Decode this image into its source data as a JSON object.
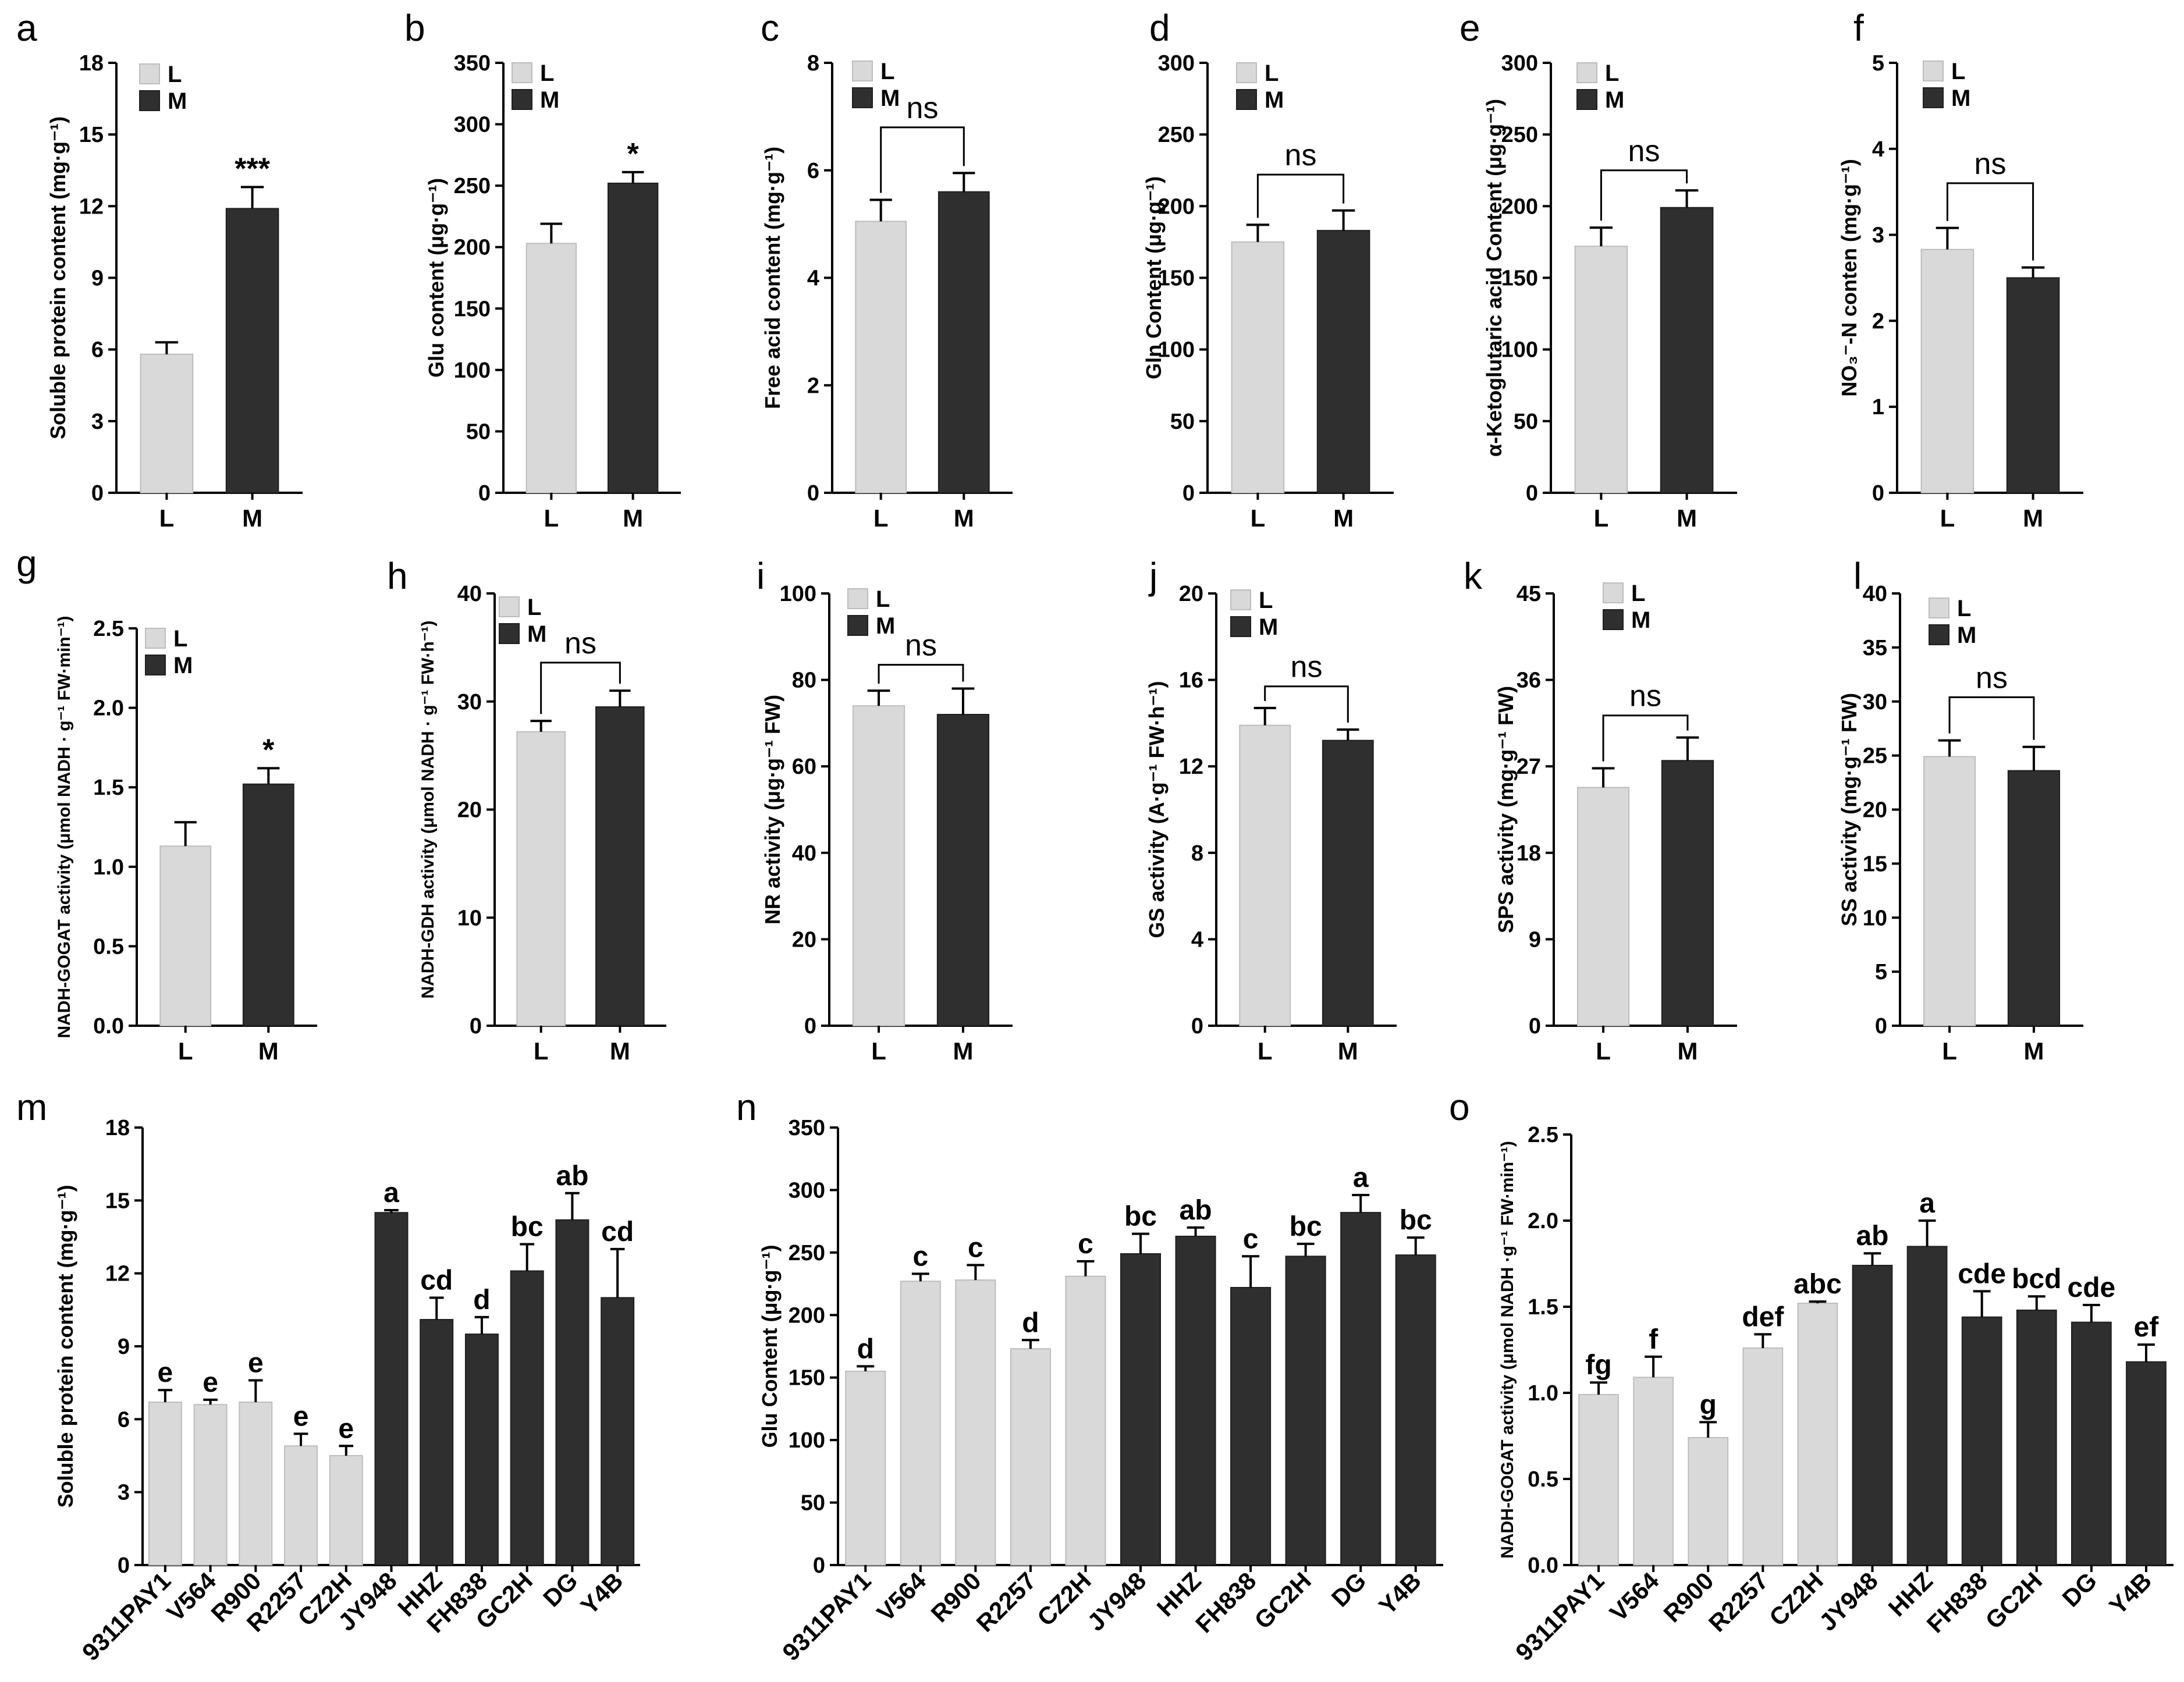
{
  "colors": {
    "low": "#d9d9d9",
    "high": "#2f2f2f",
    "axis": "#000000"
  },
  "legend": {
    "low": "L",
    "high": "M"
  },
  "chart_data": [
    {
      "id": "a",
      "panel_label": "a",
      "type": "bar",
      "categories": [
        "L",
        "M"
      ],
      "values": [
        5.8,
        11.9
      ],
      "errors": [
        0.5,
        0.9
      ],
      "ylim": [
        0,
        18
      ],
      "yticks": [
        "0",
        "3",
        "6",
        "9",
        "12",
        "15",
        "18"
      ],
      "ylabel": "Soluble protein content (mg·g⁻¹)",
      "sig": {
        "text": "***",
        "type": "star",
        "bar": 1
      }
    },
    {
      "id": "b",
      "panel_label": "b",
      "type": "bar",
      "categories": [
        "L",
        "M"
      ],
      "values": [
        203,
        252
      ],
      "errors": [
        16,
        9
      ],
      "ylim": [
        0,
        350
      ],
      "yticks": [
        "0",
        "50",
        "100",
        "150",
        "200",
        "250",
        "300",
        "350"
      ],
      "ylabel": "Glu content (μg·g⁻¹)",
      "sig": {
        "text": "*",
        "type": "star",
        "bar": 1
      }
    },
    {
      "id": "c",
      "panel_label": "c",
      "type": "bar",
      "categories": [
        "L",
        "M"
      ],
      "values": [
        5.05,
        5.6
      ],
      "errors": [
        0.4,
        0.35
      ],
      "ylim": [
        0,
        8
      ],
      "yticks": [
        "0",
        "2",
        "4",
        "6",
        "8"
      ],
      "ylabel": "Free acid content (mg·g⁻¹)",
      "sig": {
        "text": "ns",
        "type": "bracket",
        "y": 6.8
      }
    },
    {
      "id": "d",
      "panel_label": "d",
      "type": "bar",
      "categories": [
        "L",
        "M"
      ],
      "values": [
        175,
        183
      ],
      "errors": [
        12,
        14
      ],
      "ylim": [
        0,
        300
      ],
      "yticks": [
        "0",
        "50",
        "100",
        "150",
        "200",
        "250",
        "300"
      ],
      "ylabel": "Gln Content (μg·g⁻¹)",
      "sig": {
        "text": "ns",
        "type": "bracket",
        "y": 222
      }
    },
    {
      "id": "e",
      "panel_label": "e",
      "type": "bar",
      "categories": [
        "L",
        "M"
      ],
      "values": [
        172,
        199
      ],
      "errors": [
        13,
        12
      ],
      "ylim": [
        0,
        300
      ],
      "yticks": [
        "0",
        "50",
        "100",
        "150",
        "200",
        "250",
        "300"
      ],
      "ylabel": "α-Ketoglutaric acid Content (μg·g⁻¹)",
      "sig": {
        "text": "ns",
        "type": "bracket",
        "y": 225
      }
    },
    {
      "id": "f",
      "panel_label": "f",
      "type": "bar",
      "categories": [
        "L",
        "M"
      ],
      "values": [
        2.83,
        2.5
      ],
      "errors": [
        0.25,
        0.12
      ],
      "ylim": [
        0,
        5
      ],
      "yticks": [
        "0",
        "1",
        "2",
        "3",
        "4",
        "5"
      ],
      "ylabel": "NO₃⁻-N conten (mg·g⁻¹)",
      "sig": {
        "text": "ns",
        "type": "bracket",
        "y": 3.6
      }
    },
    {
      "id": "g",
      "panel_label": "g",
      "type": "bar",
      "categories": [
        "L",
        "M"
      ],
      "values": [
        1.13,
        1.52
      ],
      "errors": [
        0.15,
        0.1
      ],
      "ylim": [
        0,
        2.5
      ],
      "yticks": [
        "0.0",
        "0.5",
        "1.0",
        "1.5",
        "2.0",
        "2.5"
      ],
      "ylabel": "NADH-GOGAT activity (μmol NADH · g⁻¹ FW·min⁻¹)",
      "sig": {
        "text": "*",
        "type": "star",
        "bar": 1
      }
    },
    {
      "id": "h",
      "panel_label": "h",
      "type": "bar",
      "categories": [
        "L",
        "M"
      ],
      "values": [
        27.2,
        29.5
      ],
      "errors": [
        1.0,
        1.5
      ],
      "ylim": [
        0,
        40
      ],
      "yticks": [
        "0",
        "10",
        "20",
        "30",
        "40"
      ],
      "ylabel": "NADH-GDH activity (μmol NADH · g⁻¹ FW·h⁻¹)",
      "sig": {
        "text": "ns",
        "type": "bracket",
        "y": 33.6
      }
    },
    {
      "id": "i",
      "panel_label": "i",
      "type": "bar",
      "categories": [
        "L",
        "M"
      ],
      "values": [
        74,
        72
      ],
      "errors": [
        3.5,
        6.0
      ],
      "ylim": [
        0,
        100
      ],
      "yticks": [
        "0",
        "20",
        "40",
        "60",
        "80",
        "100"
      ],
      "ylabel": "NR activity (μg·g⁻¹ FW)",
      "sig": {
        "text": "ns",
        "type": "bracket",
        "y": 83.5
      }
    },
    {
      "id": "j",
      "panel_label": "j",
      "type": "bar",
      "categories": [
        "L",
        "M"
      ],
      "values": [
        13.9,
        13.2
      ],
      "errors": [
        0.8,
        0.5
      ],
      "ylim": [
        0,
        20
      ],
      "yticks": [
        "0",
        "4",
        "8",
        "12",
        "16",
        "20"
      ],
      "ylabel": "GS activity (A·g⁻¹ FW·h⁻¹)",
      "sig": {
        "text": "ns",
        "type": "bracket",
        "y": 15.7
      }
    },
    {
      "id": "k",
      "panel_label": "k",
      "type": "bar",
      "categories": [
        "L",
        "M"
      ],
      "values": [
        24.8,
        27.6
      ],
      "errors": [
        2.0,
        2.4
      ],
      "ylim": [
        0,
        45
      ],
      "yticks": [
        "0",
        "9",
        "18",
        "27",
        "36",
        "45"
      ],
      "ylabel": "SPS activity (mg·g⁻¹ FW)",
      "sig": {
        "text": "ns",
        "type": "bracket",
        "y": 32.3
      }
    },
    {
      "id": "l",
      "panel_label": "l",
      "type": "bar",
      "categories": [
        "L",
        "M"
      ],
      "values": [
        24.9,
        23.6
      ],
      "errors": [
        1.5,
        2.2
      ],
      "ylim": [
        0,
        40
      ],
      "yticks": [
        "0",
        "5",
        "10",
        "15",
        "20",
        "25",
        "30",
        "35",
        "40"
      ],
      "ylabel": "SS activity (mg·g⁻¹ FW)",
      "sig": {
        "text": "ns",
        "type": "bracket",
        "y": 30.4
      }
    },
    {
      "id": "m",
      "panel_label": "m",
      "type": "bar",
      "categories": [
        "9311PAY1",
        "V564",
        "R900",
        "R2257",
        "CZ2H",
        "JY948",
        "HHZ",
        "FH838",
        "GC2H",
        "DG",
        "Y4B"
      ],
      "groups": [
        "L",
        "L",
        "L",
        "L",
        "L",
        "M",
        "M",
        "M",
        "M",
        "M",
        "M"
      ],
      "values": [
        6.7,
        6.6,
        6.7,
        4.9,
        4.5,
        14.5,
        10.1,
        9.5,
        12.1,
        14.2,
        11.0
      ],
      "errors": [
        0.5,
        0.2,
        0.9,
        0.5,
        0.4,
        0.1,
        0.9,
        0.7,
        1.1,
        1.1,
        2.0
      ],
      "letters": [
        "e",
        "e",
        "e",
        "e",
        "e",
        "a",
        "cd",
        "d",
        "bc",
        "ab",
        "cd"
      ],
      "ylim": [
        0,
        18
      ],
      "yticks": [
        "0",
        "3",
        "6",
        "9",
        "12",
        "15",
        "18"
      ],
      "ylabel": "Soluble protein content (mg·g⁻¹)"
    },
    {
      "id": "n",
      "panel_label": "n",
      "type": "bar",
      "categories": [
        "9311PAY1",
        "V564",
        "R900",
        "R2257",
        "CZ2H",
        "JY948",
        "HHZ",
        "FH838",
        "GC2H",
        "DG",
        "Y4B"
      ],
      "groups": [
        "L",
        "L",
        "L",
        "L",
        "L",
        "M",
        "M",
        "M",
        "M",
        "M",
        "M"
      ],
      "values": [
        155,
        227,
        228,
        173,
        231,
        249,
        263,
        222,
        247,
        282,
        248
      ],
      "errors": [
        4,
        6,
        12,
        7,
        12,
        16,
        7,
        25,
        10,
        14,
        14
      ],
      "letters": [
        "d",
        "c",
        "c",
        "d",
        "c",
        "bc",
        "ab",
        "c",
        "bc",
        "a",
        "bc"
      ],
      "ylim": [
        0,
        350
      ],
      "yticks": [
        "0",
        "50",
        "100",
        "150",
        "200",
        "250",
        "300",
        "350"
      ],
      "ylabel": "Glu Content (μg·g⁻¹)"
    },
    {
      "id": "o",
      "panel_label": "o",
      "type": "bar",
      "categories": [
        "9311PAY1",
        "V564",
        "R900",
        "R2257",
        "CZ2H",
        "JY948",
        "HHZ",
        "FH838",
        "GC2H",
        "DG",
        "Y4B"
      ],
      "groups": [
        "L",
        "L",
        "L",
        "L",
        "L",
        "M",
        "M",
        "M",
        "M",
        "M",
        "M"
      ],
      "values": [
        0.99,
        1.09,
        0.74,
        1.26,
        1.52,
        1.74,
        1.85,
        1.44,
        1.48,
        1.41,
        1.18
      ],
      "errors": [
        0.07,
        0.12,
        0.09,
        0.08,
        0.01,
        0.07,
        0.15,
        0.15,
        0.08,
        0.1,
        0.1
      ],
      "letters": [
        "fg",
        "f",
        "g",
        "def",
        "abc",
        "ab",
        "a",
        "cde",
        "bcd",
        "cde",
        "ef"
      ],
      "ylim": [
        0,
        2.5
      ],
      "yticks": [
        "0.0",
        "0.5",
        "1.0",
        "1.5",
        "2.0",
        "2.5"
      ],
      "ylabel": "NADH-GOGAT activity (μmol NADH ·g⁻¹ FW·min⁻¹)"
    }
  ]
}
